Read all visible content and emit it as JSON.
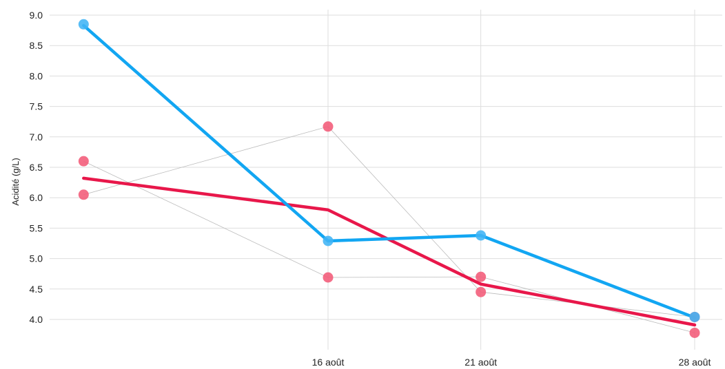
{
  "chart_data": {
    "type": "line",
    "ylabel": "Acidité (g/L)",
    "xlabel": "",
    "ylim": [
      3.6,
      9.1
    ],
    "y_ticks": [
      "4.0",
      "4.5",
      "5.0",
      "5.5",
      "6.0",
      "6.5",
      "7.0",
      "7.5",
      "8.0",
      "8.5",
      "9.0"
    ],
    "x_ticks": [
      "16 août",
      "21 août",
      "28 août"
    ],
    "grid": true,
    "individual_series": [
      {
        "color": "#f25a78",
        "points": [
          [
            "08-08",
            6.6
          ],
          [
            "08-16",
            4.69
          ],
          [
            "08-21",
            4.7
          ],
          [
            "08-28",
            3.78
          ]
        ]
      },
      {
        "color": "#f25a78",
        "points": [
          [
            "08-08",
            6.05
          ],
          [
            "08-16",
            7.17
          ],
          [
            "08-21",
            4.45
          ],
          [
            "08-28",
            4.04
          ]
        ]
      },
      {
        "color": "#40b4f5",
        "points": [
          [
            "08-08",
            8.85
          ],
          [
            "08-16",
            5.29
          ],
          [
            "08-21",
            5.38
          ],
          [
            "08-28",
            4.04
          ]
        ]
      }
    ],
    "trend_series": [
      {
        "color": "#e8174a",
        "points": [
          [
            "08-08",
            6.32
          ],
          [
            "08-16",
            5.8
          ],
          [
            "08-21",
            4.58
          ],
          [
            "08-28",
            3.91
          ]
        ]
      },
      {
        "color": "#12a6f2",
        "points": [
          [
            "08-08",
            8.83
          ],
          [
            "08-16",
            5.29
          ],
          [
            "08-21",
            5.38
          ],
          [
            "08-28",
            4.03
          ]
        ]
      }
    ],
    "colors": {
      "grid": "#dddddd",
      "connector": "#bbbbbb"
    }
  }
}
